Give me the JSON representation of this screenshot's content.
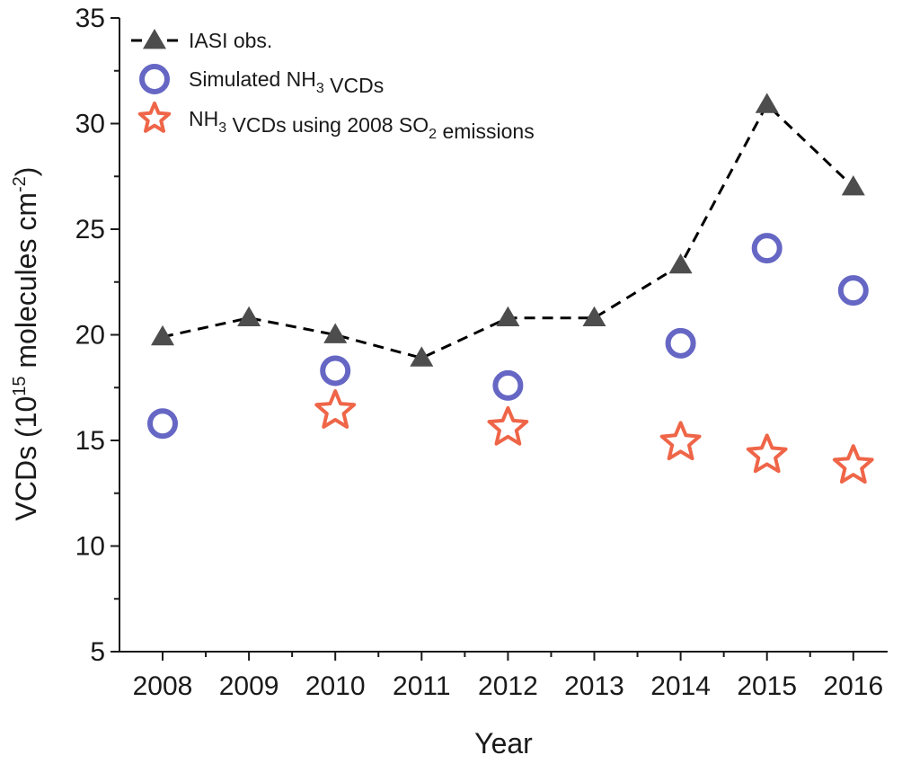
{
  "chart_data": {
    "type": "line",
    "xlabel": "Year",
    "ylabel": {
      "prefix": "VCDs (10",
      "exp": "15",
      "middle": " molecules cm",
      "exp2": "-2",
      "suffix": ")"
    },
    "ylim": [
      5,
      35
    ],
    "yticks": [
      5,
      10,
      15,
      20,
      25,
      30,
      35
    ],
    "categories": [
      "2008",
      "2009",
      "2010",
      "2011",
      "2012",
      "2013",
      "2014",
      "2015",
      "2016"
    ],
    "series": [
      {
        "name": "IASI obs.",
        "marker": "triangle",
        "line": "dashed",
        "color": "#4d4d4d",
        "values": [
          19.9,
          20.8,
          20.0,
          18.9,
          20.8,
          20.8,
          23.3,
          30.9,
          27.0
        ]
      },
      {
        "name": "Simulated NH3 VCDs",
        "marker": "circle",
        "line": "none",
        "color": "#6667c4",
        "values": [
          15.8,
          null,
          18.3,
          null,
          17.6,
          null,
          19.6,
          24.1,
          22.1
        ]
      },
      {
        "name": "NH3 VCDs using 2008 SO2 emissions",
        "marker": "star",
        "line": "none",
        "color": "#ef6548",
        "values": [
          null,
          null,
          16.4,
          null,
          15.6,
          null,
          14.9,
          14.3,
          13.8
        ]
      }
    ],
    "legend": {
      "position": "top-left",
      "entries": [
        {
          "parts": [
            {
              "t": "IASI obs."
            }
          ]
        },
        {
          "parts": [
            {
              "t": "Simulated NH"
            },
            {
              "t": "3",
              "sub": true
            },
            {
              "t": " VCDs"
            }
          ]
        },
        {
          "parts": [
            {
              "t": "NH"
            },
            {
              "t": "3",
              "sub": true
            },
            {
              "t": " VCDs using 2008 SO"
            },
            {
              "t": "2",
              "sub": true
            },
            {
              "t": " emissions"
            }
          ]
        }
      ]
    }
  }
}
